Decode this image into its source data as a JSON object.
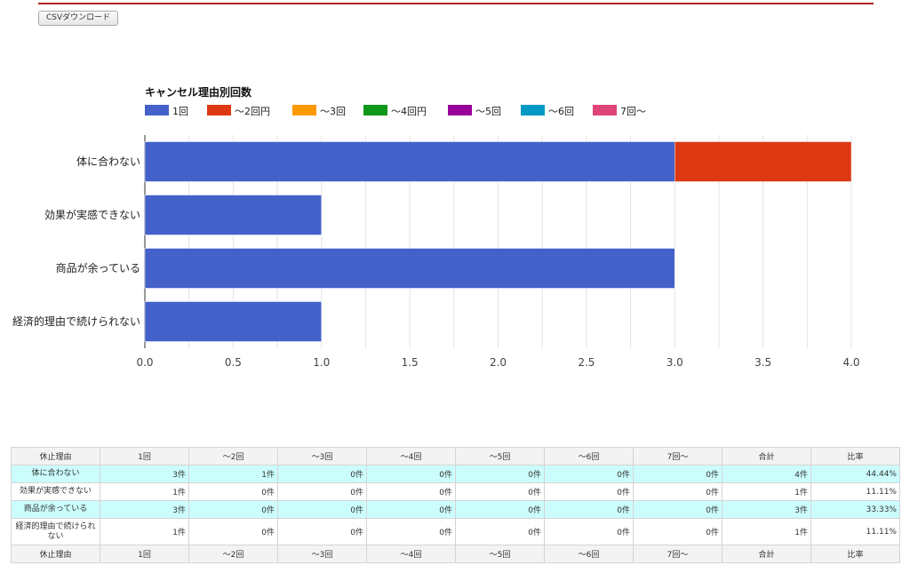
{
  "toolbar": {
    "csv_label": "CSVダウンロード"
  },
  "colors": {
    "rule": "#b22222",
    "grid": "#dddddd",
    "row_alt": "#ccfdfd"
  },
  "chart_data": {
    "type": "bar",
    "orientation": "horizontal",
    "stacked": true,
    "title": "キャンセル理由別回数",
    "categories": [
      "体に合わない",
      "効果が実感できない",
      "商品が余っている",
      "経済的理由で続けられない"
    ],
    "series": [
      {
        "name": "1回",
        "color": "#4361c9",
        "values": [
          3,
          1,
          3,
          1
        ]
      },
      {
        "name": "～2回円",
        "color": "#dc3912",
        "values": [
          1,
          0,
          0,
          0
        ]
      },
      {
        "name": "～3回",
        "color": "#ff9900",
        "values": [
          0,
          0,
          0,
          0
        ]
      },
      {
        "name": "～4回円",
        "color": "#109618",
        "values": [
          0,
          0,
          0,
          0
        ]
      },
      {
        "name": "～5回",
        "color": "#990099",
        "values": [
          0,
          0,
          0,
          0
        ]
      },
      {
        "name": "～6回",
        "color": "#0099c6",
        "values": [
          0,
          0,
          0,
          0
        ]
      },
      {
        "name": "7回～",
        "color": "#dd4477",
        "values": [
          0,
          0,
          0,
          0
        ]
      }
    ],
    "xlim": [
      0,
      4
    ],
    "x_ticks": [
      "0.0",
      "0.5",
      "1.0",
      "1.5",
      "2.0",
      "2.5",
      "3.0",
      "3.5",
      "4.0"
    ],
    "grid": true,
    "legend_position": "top"
  },
  "table": {
    "headers": [
      "休止理由",
      "1回",
      "～2回",
      "～3回",
      "～4回",
      "～5回",
      "～6回",
      "7回～",
      "合計",
      "比率"
    ],
    "rows": [
      {
        "reason": "体に合わない",
        "cells": [
          "3件",
          "1件",
          "0件",
          "0件",
          "0件",
          "0件",
          "0件",
          "4件",
          "44.44%"
        ]
      },
      {
        "reason": "効果が実感できない",
        "cells": [
          "1件",
          "0件",
          "0件",
          "0件",
          "0件",
          "0件",
          "0件",
          "1件",
          "11.11%"
        ]
      },
      {
        "reason": "商品が余っている",
        "cells": [
          "3件",
          "0件",
          "0件",
          "0件",
          "0件",
          "0件",
          "0件",
          "3件",
          "33.33%"
        ]
      },
      {
        "reason": "経済的理由で続けられない",
        "cells": [
          "1件",
          "0件",
          "0件",
          "0件",
          "0件",
          "0件",
          "0件",
          "1件",
          "11.11%"
        ]
      }
    ]
  }
}
